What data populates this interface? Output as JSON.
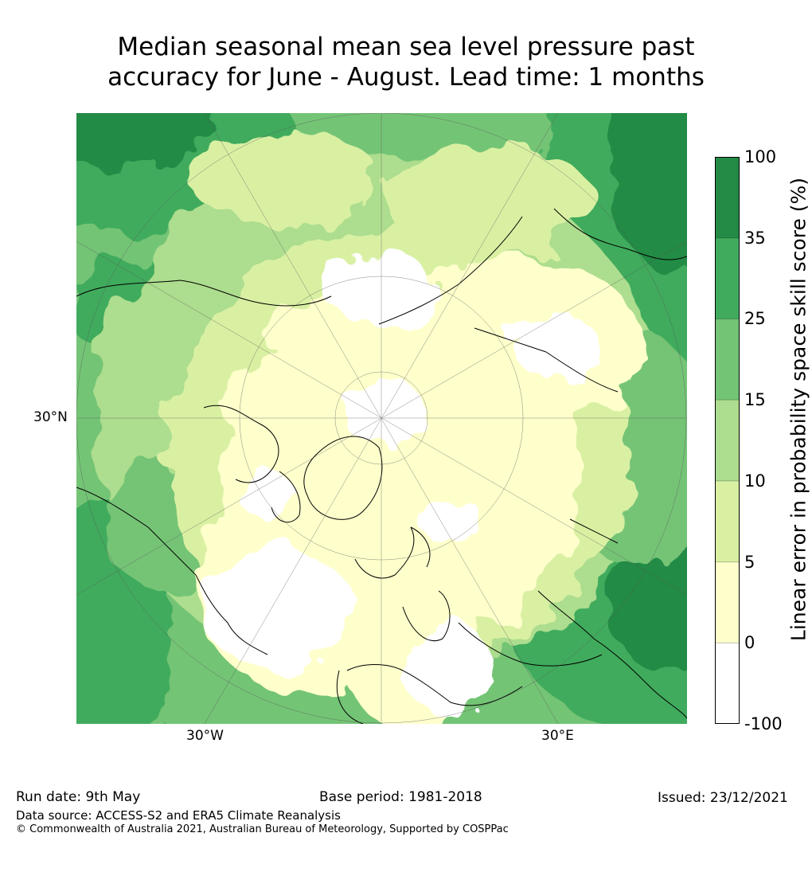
{
  "title": {
    "line1": "Median seasonal mean sea level pressure past",
    "line2": "accuracy for June - August. Lead time: 1 months"
  },
  "map": {
    "projection": "north-polar-stereographic",
    "lat_label": "30°N",
    "lon_labels": [
      "30°W",
      "30°E"
    ]
  },
  "colorbar": {
    "label": "Linear error in probability space skill score (%)",
    "ticks": [
      "100",
      "35",
      "25",
      "15",
      "10",
      "5",
      "0",
      "-100"
    ],
    "bands": [
      {
        "from": 35,
        "to": 100,
        "color": "#238b45"
      },
      {
        "from": 25,
        "to": 35,
        "color": "#41ab5d"
      },
      {
        "from": 15,
        "to": 25,
        "color": "#74c476"
      },
      {
        "from": 10,
        "to": 15,
        "color": "#addd8e"
      },
      {
        "from": 5,
        "to": 10,
        "color": "#d9f0a3"
      },
      {
        "from": 0,
        "to": 5,
        "color": "#ffffcc"
      },
      {
        "from": -100,
        "to": 0,
        "color": "#ffffff"
      }
    ]
  },
  "footer": {
    "run_date": "Run date: 9th May",
    "base_period": "Base period: 1981-2018",
    "issued": "Issued: 23/12/2021",
    "data_source": "Data source: ACCESS-S2 and ERA5 Climate Reanalysis",
    "copyright": "© Commonwealth of Australia 2021, Australian Bureau of Meteorology, Supported by COSPPac"
  }
}
